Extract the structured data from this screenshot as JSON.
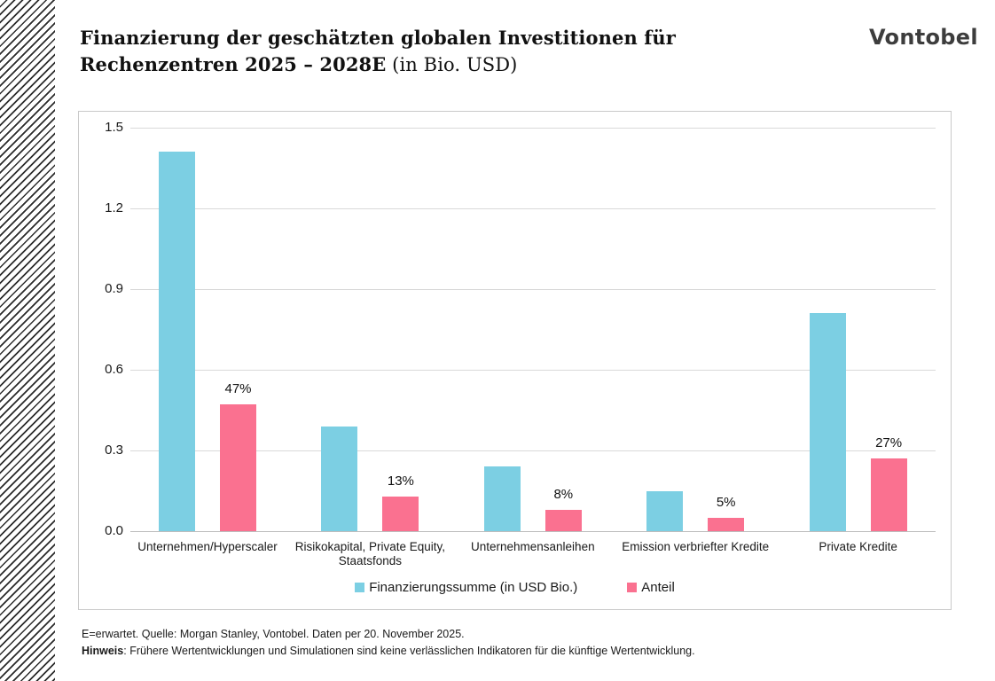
{
  "header": {
    "title_line1": "Finanzierung der geschätzten globalen Investitionen für",
    "title_line2_bold": "Rechenzentren 2025 – 2028E",
    "title_line2_normal": " (in Bio. USD)",
    "logo": "Vontobel"
  },
  "chart_data": {
    "type": "bar",
    "title": "Finanzierung der geschätzten globalen Investitionen für Rechenzentren 2025 – 2028E (in Bio. USD)",
    "categories": [
      "Unternehmen/Hyperscaler",
      "Risikokapital, Private Equity, Staatsfonds",
      "Unternehmensanleihen",
      "Emission verbriefter Kredite",
      "Private Kredite"
    ],
    "series": [
      {
        "name": "Finanzierungssumme (in USD Bio.)",
        "color": "#7CCFE3",
        "values": [
          1.41,
          0.39,
          0.24,
          0.15,
          0.81
        ],
        "labels": [
          "",
          "",
          "",
          "",
          ""
        ]
      },
      {
        "name": "Anteil",
        "color": "#FA7190",
        "values": [
          0.47,
          0.13,
          0.08,
          0.05,
          0.27
        ],
        "labels": [
          "47%",
          "13%",
          "8%",
          "5%",
          "27%"
        ]
      }
    ],
    "xlabel": "",
    "ylabel": "",
    "ylim": [
      0,
      1.5
    ],
    "yticks": [
      "0.0",
      "0.3",
      "0.6",
      "0.9",
      "1.2",
      "1.5"
    ],
    "grid": true,
    "legend_position": "bottom"
  },
  "footnotes": {
    "line1": "E=erwartet. Quelle: Morgan Stanley, Vontobel. Daten per 20. November 2025.",
    "line2_bold": "Hinweis",
    "line2_rest": ": Frühere Wertentwicklungen und Simulationen sind keine verlässlichen Indikatoren für die künftige Wertentwicklung."
  }
}
